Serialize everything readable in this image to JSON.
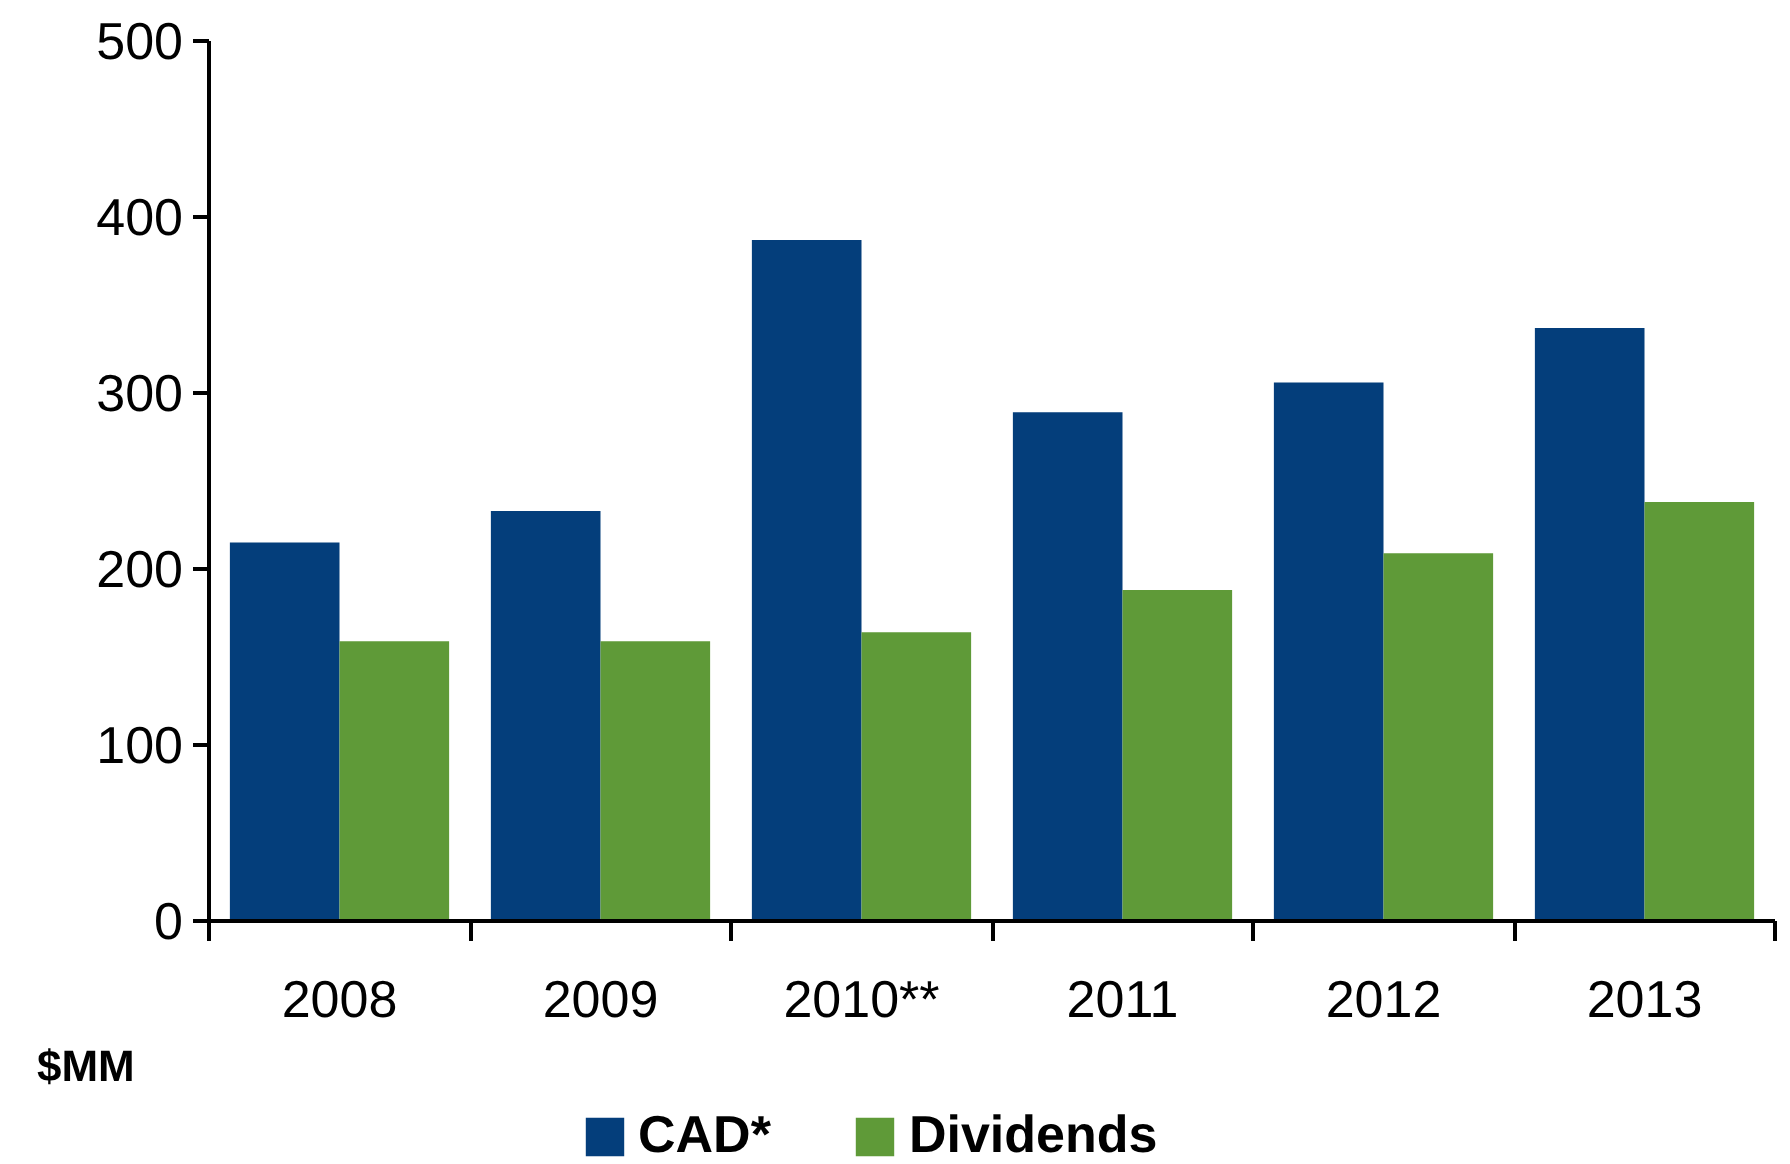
{
  "chart_data": {
    "type": "bar",
    "annotations": [
      "$MM"
    ],
    "categories": [
      "2008",
      "2009",
      "2010**",
      "2011",
      "2012",
      "2013"
    ],
    "series": [
      {
        "name": "CAD*",
        "color": "#043e7b",
        "values": [
          215,
          233,
          387,
          289,
          306,
          337
        ]
      },
      {
        "name": "Dividends",
        "color": "#5f9a38",
        "values": [
          159,
          159,
          164,
          188,
          209,
          238
        ]
      }
    ],
    "ylim": [
      0,
      500
    ],
    "yticks": [
      0,
      100,
      200,
      300,
      400,
      500
    ],
    "grid": false,
    "legend": "bottom"
  }
}
